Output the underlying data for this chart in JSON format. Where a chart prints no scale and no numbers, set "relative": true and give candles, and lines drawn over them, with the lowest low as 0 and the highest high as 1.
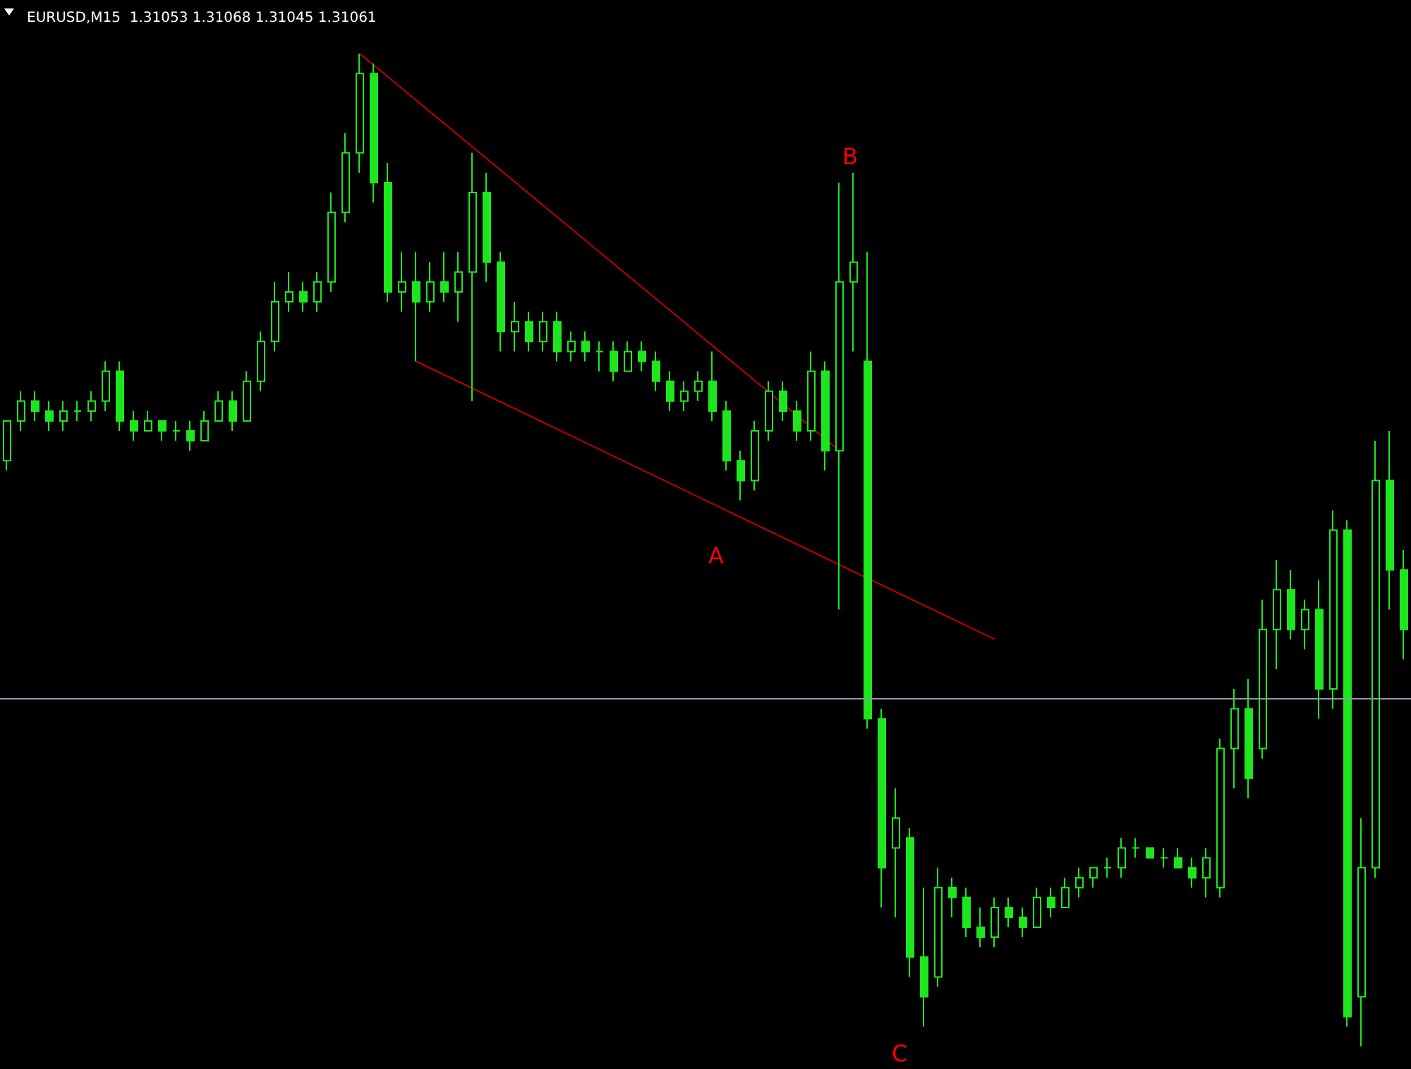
{
  "chart_data": {
    "type": "candlestick",
    "title": "EURUSD,M15  1.31053 1.31068 1.31045 1.31061",
    "relative": true,
    "color": "#1ee61e",
    "categories": [
      null,
      null,
      null,
      null,
      null,
      null,
      null,
      null,
      null,
      null,
      null,
      null,
      null,
      null,
      null,
      null,
      null,
      null,
      null,
      null,
      null,
      null,
      null,
      null,
      null,
      null,
      null,
      null,
      null,
      null,
      null,
      null,
      null,
      null,
      null,
      null,
      null,
      null,
      null,
      null,
      null,
      null,
      null,
      null,
      null,
      null,
      null,
      null,
      null,
      null,
      null,
      null,
      null,
      null,
      null,
      null,
      null,
      null,
      null,
      null,
      null,
      null,
      null,
      null,
      null,
      null,
      null,
      null,
      null,
      null,
      null,
      null,
      null,
      null,
      null,
      null,
      null,
      null,
      null,
      null,
      null,
      null,
      null,
      null,
      null,
      null,
      null,
      null,
      null,
      null,
      null,
      null,
      null,
      null,
      null,
      null,
      null,
      null,
      null,
      null
    ],
    "ohlc": [
      [
        0.59,
        0.63,
        0.58,
        0.63
      ],
      [
        0.63,
        0.66,
        0.62,
        0.65
      ],
      [
        0.65,
        0.66,
        0.63,
        0.64
      ],
      [
        0.64,
        0.65,
        0.62,
        0.63
      ],
      [
        0.63,
        0.65,
        0.62,
        0.64
      ],
      [
        0.64,
        0.65,
        0.63,
        0.64
      ],
      [
        0.64,
        0.66,
        0.63,
        0.65
      ],
      [
        0.65,
        0.69,
        0.64,
        0.68
      ],
      [
        0.68,
        0.69,
        0.62,
        0.63
      ],
      [
        0.63,
        0.64,
        0.61,
        0.62
      ],
      [
        0.62,
        0.64,
        0.62,
        0.63
      ],
      [
        0.63,
        0.63,
        0.61,
        0.62
      ],
      [
        0.62,
        0.63,
        0.61,
        0.62
      ],
      [
        0.62,
        0.63,
        0.6,
        0.61
      ],
      [
        0.61,
        0.64,
        0.61,
        0.63
      ],
      [
        0.63,
        0.66,
        0.63,
        0.65
      ],
      [
        0.65,
        0.66,
        0.62,
        0.63
      ],
      [
        0.63,
        0.68,
        0.63,
        0.67
      ],
      [
        0.67,
        0.72,
        0.66,
        0.71
      ],
      [
        0.71,
        0.77,
        0.7,
        0.75
      ],
      [
        0.75,
        0.78,
        0.74,
        0.76
      ],
      [
        0.76,
        0.77,
        0.74,
        0.75
      ],
      [
        0.75,
        0.78,
        0.74,
        0.77
      ],
      [
        0.77,
        0.86,
        0.76,
        0.84
      ],
      [
        0.84,
        0.92,
        0.83,
        0.9
      ],
      [
        0.9,
        1.0,
        0.88,
        0.98
      ],
      [
        0.98,
        0.99,
        0.85,
        0.87
      ],
      [
        0.87,
        0.89,
        0.75,
        0.76
      ],
      [
        0.76,
        0.8,
        0.74,
        0.77
      ],
      [
        0.77,
        0.8,
        0.69,
        0.75
      ],
      [
        0.75,
        0.79,
        0.74,
        0.77
      ],
      [
        0.77,
        0.8,
        0.75,
        0.76
      ],
      [
        0.76,
        0.8,
        0.73,
        0.78
      ],
      [
        0.78,
        0.9,
        0.65,
        0.86
      ],
      [
        0.86,
        0.88,
        0.77,
        0.79
      ],
      [
        0.79,
        0.8,
        0.7,
        0.72
      ],
      [
        0.72,
        0.75,
        0.7,
        0.73
      ],
      [
        0.73,
        0.74,
        0.7,
        0.71
      ],
      [
        0.71,
        0.74,
        0.7,
        0.73
      ],
      [
        0.73,
        0.74,
        0.69,
        0.7
      ],
      [
        0.7,
        0.72,
        0.69,
        0.71
      ],
      [
        0.71,
        0.72,
        0.69,
        0.7
      ],
      [
        0.7,
        0.71,
        0.68,
        0.7
      ],
      [
        0.7,
        0.71,
        0.67,
        0.68
      ],
      [
        0.68,
        0.71,
        0.68,
        0.7
      ],
      [
        0.7,
        0.71,
        0.68,
        0.69
      ],
      [
        0.69,
        0.7,
        0.66,
        0.67
      ],
      [
        0.67,
        0.68,
        0.64,
        0.65
      ],
      [
        0.65,
        0.67,
        0.64,
        0.66
      ],
      [
        0.66,
        0.68,
        0.65,
        0.67
      ],
      [
        0.67,
        0.7,
        0.63,
        0.64
      ],
      [
        0.64,
        0.65,
        0.58,
        0.59
      ],
      [
        0.59,
        0.6,
        0.55,
        0.57
      ],
      [
        0.57,
        0.63,
        0.56,
        0.62
      ],
      [
        0.62,
        0.67,
        0.61,
        0.66
      ],
      [
        0.66,
        0.67,
        0.63,
        0.64
      ],
      [
        0.64,
        0.65,
        0.61,
        0.62
      ],
      [
        0.62,
        0.7,
        0.61,
        0.68
      ],
      [
        0.68,
        0.69,
        0.58,
        0.6
      ],
      [
        0.6,
        0.87,
        0.44,
        0.77
      ],
      [
        0.77,
        0.88,
        0.7,
        0.79
      ],
      [
        0.69,
        0.8,
        0.32,
        0.33
      ],
      [
        0.33,
        0.34,
        0.14,
        0.18
      ],
      [
        0.2,
        0.26,
        0.13,
        0.23
      ],
      [
        0.21,
        0.22,
        0.07,
        0.09
      ],
      [
        0.09,
        0.16,
        0.02,
        0.05
      ],
      [
        0.07,
        0.18,
        0.06,
        0.16
      ],
      [
        0.16,
        0.17,
        0.13,
        0.15
      ],
      [
        0.15,
        0.16,
        0.11,
        0.12
      ],
      [
        0.12,
        0.14,
        0.1,
        0.11
      ],
      [
        0.11,
        0.15,
        0.1,
        0.14
      ],
      [
        0.14,
        0.15,
        0.12,
        0.13
      ],
      [
        0.13,
        0.14,
        0.11,
        0.12
      ],
      [
        0.12,
        0.16,
        0.12,
        0.15
      ],
      [
        0.15,
        0.16,
        0.13,
        0.14
      ],
      [
        0.14,
        0.17,
        0.14,
        0.16
      ],
      [
        0.16,
        0.18,
        0.15,
        0.17
      ],
      [
        0.17,
        0.18,
        0.16,
        0.18
      ],
      [
        0.18,
        0.19,
        0.17,
        0.18
      ],
      [
        0.18,
        0.21,
        0.17,
        0.2
      ],
      [
        0.2,
        0.21,
        0.19,
        0.2
      ],
      [
        0.2,
        0.2,
        0.19,
        0.19
      ],
      [
        0.19,
        0.2,
        0.18,
        0.19
      ],
      [
        0.19,
        0.2,
        0.18,
        0.18
      ],
      [
        0.18,
        0.19,
        0.16,
        0.17
      ],
      [
        0.17,
        0.2,
        0.15,
        0.19
      ],
      [
        0.16,
        0.31,
        0.15,
        0.3
      ],
      [
        0.3,
        0.36,
        0.26,
        0.34
      ],
      [
        0.34,
        0.37,
        0.25,
        0.27
      ],
      [
        0.3,
        0.45,
        0.29,
        0.42
      ],
      [
        0.42,
        0.49,
        0.38,
        0.46
      ],
      [
        0.46,
        0.48,
        0.41,
        0.42
      ],
      [
        0.42,
        0.45,
        0.4,
        0.44
      ],
      [
        0.44,
        0.47,
        0.33,
        0.36
      ],
      [
        0.36,
        0.54,
        0.34,
        0.52
      ],
      [
        0.52,
        0.53,
        0.02,
        0.03
      ],
      [
        0.05,
        0.23,
        0.0,
        0.18
      ],
      [
        0.18,
        0.61,
        0.17,
        0.57
      ],
      [
        0.57,
        0.62,
        0.44,
        0.48
      ],
      [
        0.48,
        0.5,
        0.39,
        0.42
      ]
    ],
    "series": [
      {
        "type": "line",
        "color": "#c00000",
        "values": [
          null,
          null,
          null,
          null,
          null,
          null,
          null,
          null,
          null,
          null,
          null,
          null,
          null,
          null,
          null,
          null,
          null,
          null,
          null,
          null,
          null,
          null,
          null,
          null,
          null,
          1.0,
          null,
          null,
          null,
          null,
          null,
          null,
          null,
          null,
          null,
          null,
          null,
          null,
          null,
          null,
          null,
          null,
          null,
          null,
          null,
          null,
          null,
          null,
          null,
          null,
          null,
          null,
          null,
          null,
          null,
          null,
          null,
          null,
          null,
          0.6,
          null,
          null,
          null,
          null,
          null,
          null,
          null,
          null,
          null,
          null,
          null,
          null,
          null,
          null,
          null,
          null,
          null,
          null,
          null,
          null,
          null,
          null,
          null,
          null,
          null,
          null,
          null,
          null,
          null,
          null,
          null,
          null,
          null,
          null,
          null,
          null,
          null,
          null,
          null,
          null
        ]
      },
      {
        "type": "line",
        "color": "#c00000",
        "values": [
          null,
          null,
          null,
          null,
          null,
          null,
          null,
          null,
          null,
          null,
          null,
          null,
          null,
          null,
          null,
          null,
          null,
          null,
          null,
          null,
          null,
          null,
          null,
          null,
          null,
          null,
          null,
          null,
          null,
          0.69,
          null,
          null,
          null,
          null,
          null,
          null,
          null,
          null,
          null,
          null,
          null,
          null,
          null,
          null,
          null,
          null,
          null,
          null,
          null,
          null,
          null,
          null,
          null,
          null,
          null,
          null,
          null,
          null,
          null,
          null,
          null,
          null,
          null,
          null,
          null,
          null,
          null,
          null,
          null,
          null,
          0.41,
          null,
          null,
          null,
          null,
          null,
          null,
          null,
          null,
          null,
          null,
          null,
          null,
          null,
          null,
          null,
          null,
          null,
          null,
          null,
          null,
          null,
          null,
          null,
          null,
          null,
          null,
          null,
          null,
          null
        ]
      }
    ],
    "ref_lines": [
      {
        "axis": "y",
        "value": 0.35,
        "color": "#8c9aa8"
      }
    ],
    "annotations": [
      "A",
      "B",
      "C"
    ]
  }
}
